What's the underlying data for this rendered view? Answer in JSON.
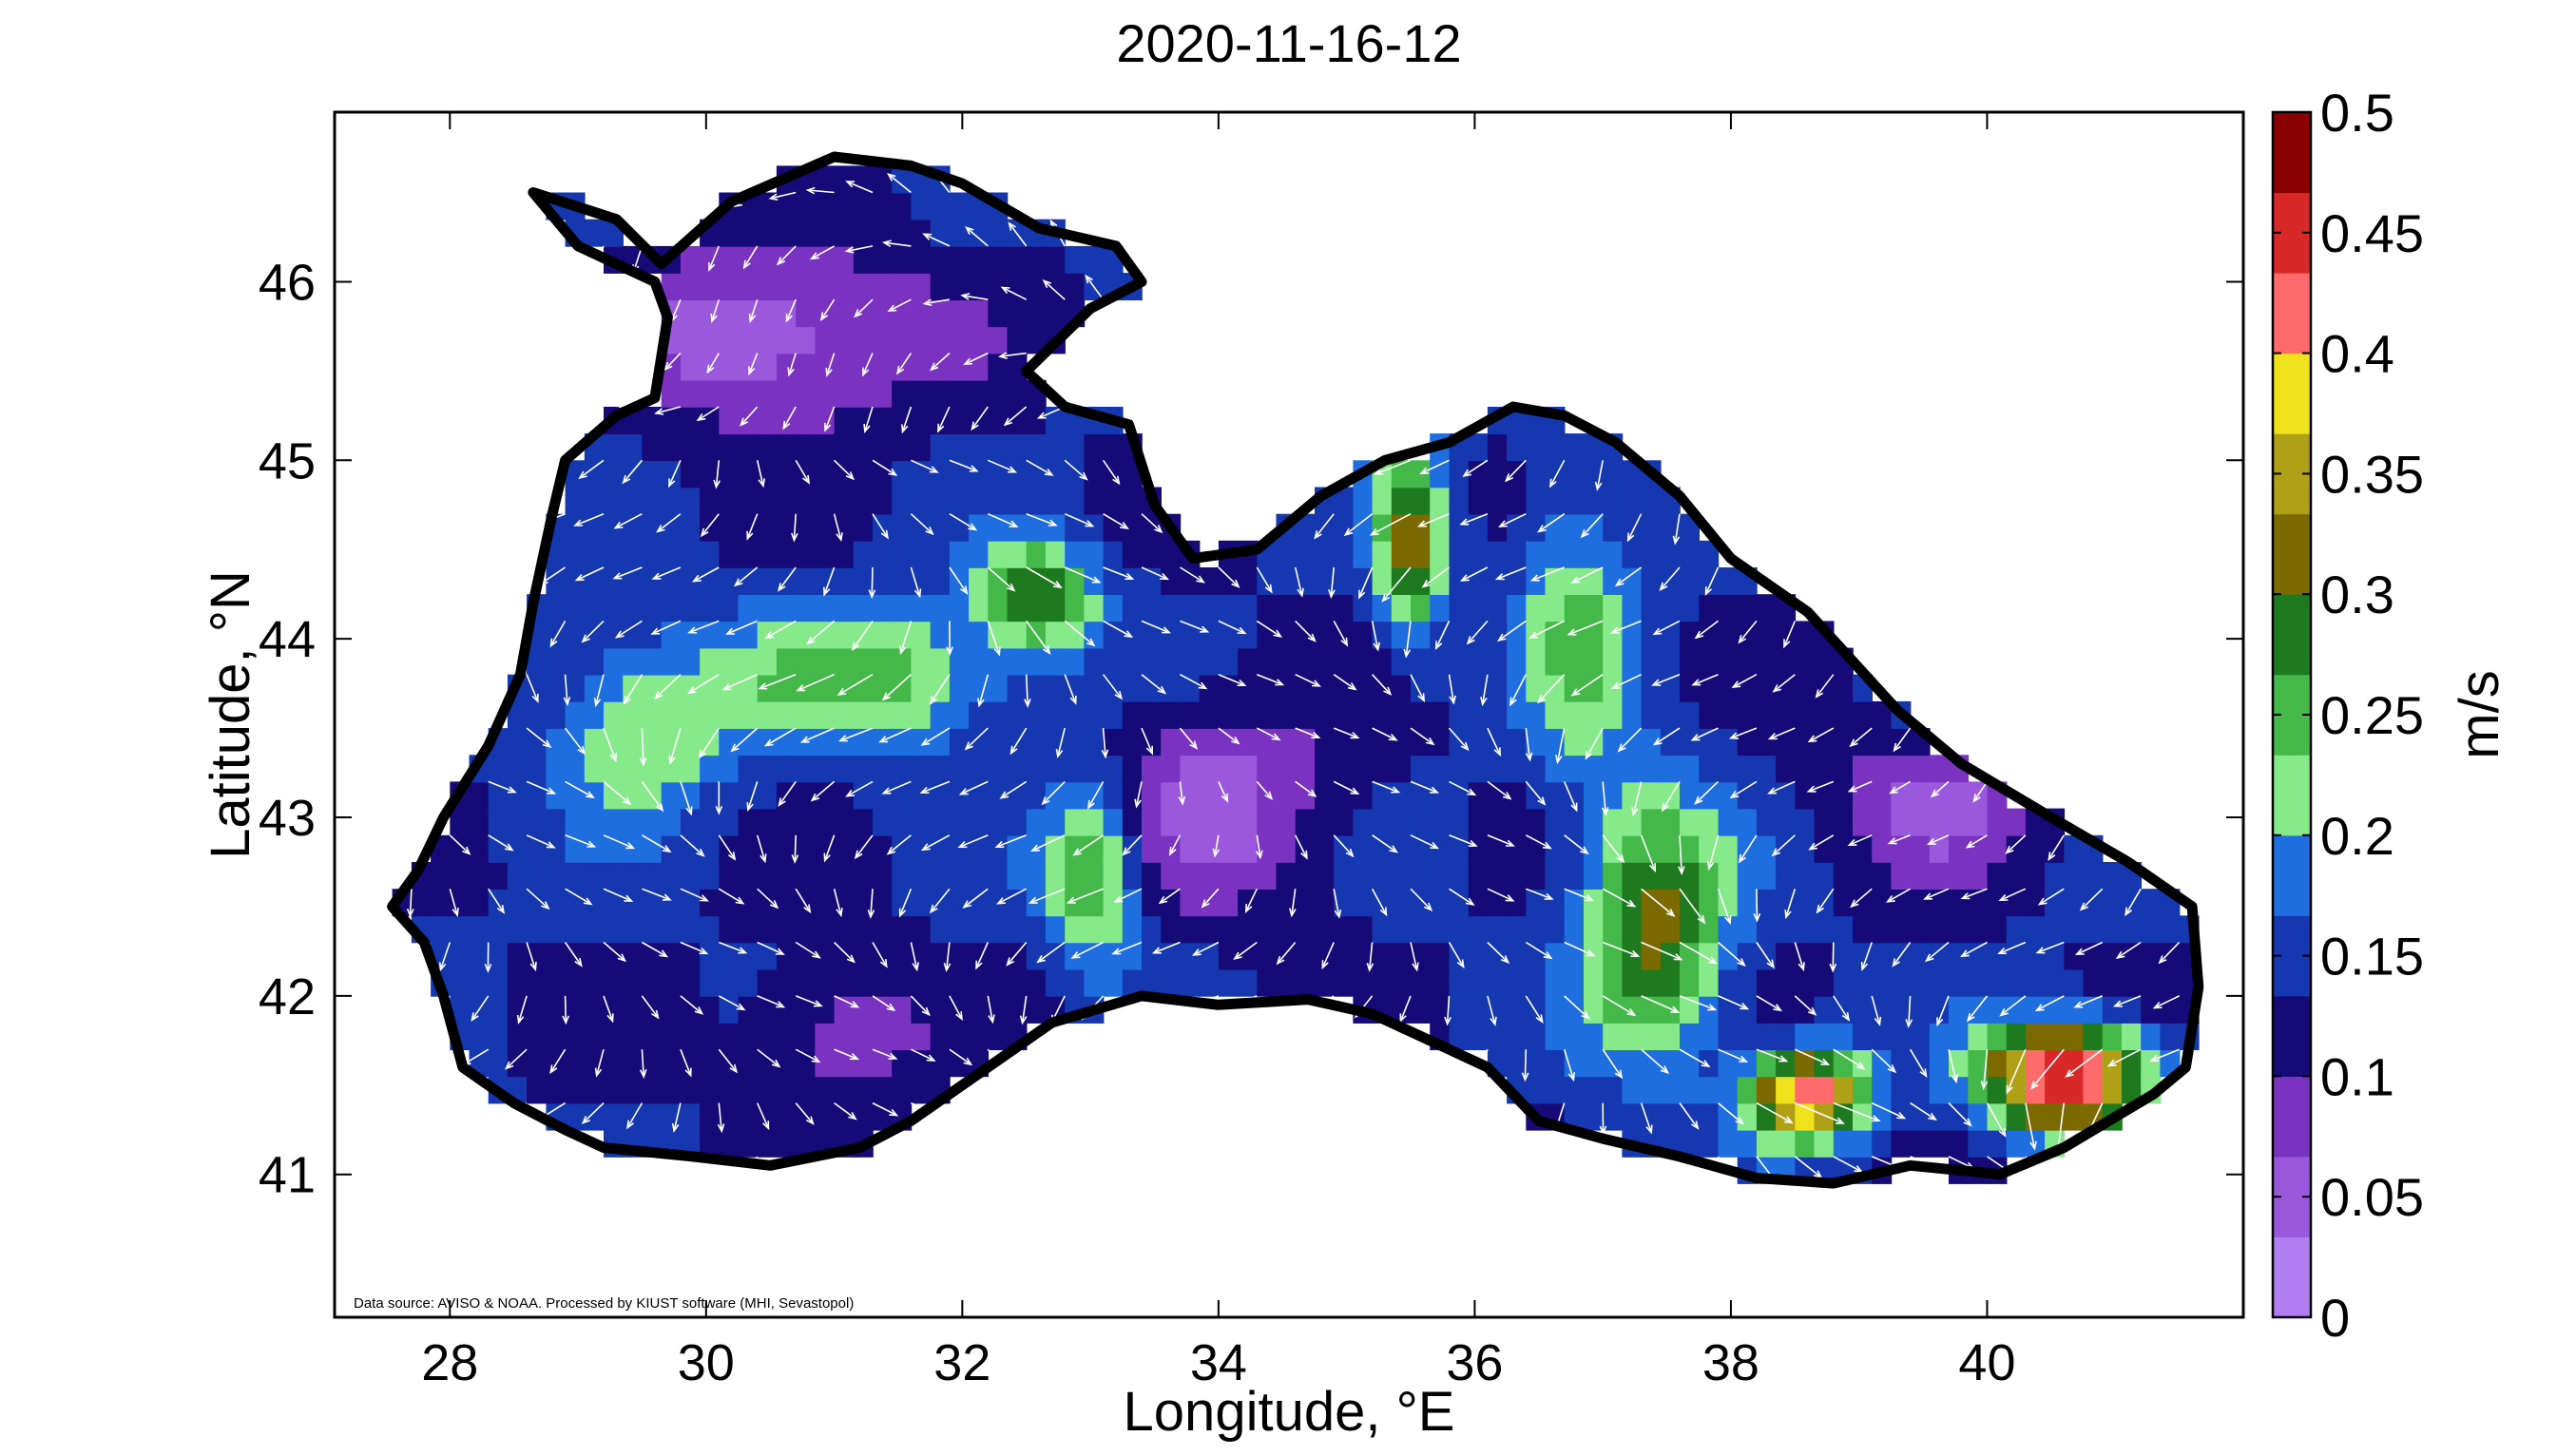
{
  "chart_data": {
    "type": "heatmap",
    "title": "2020-11-16-12",
    "xlabel": "Longitude, °E",
    "ylabel": "Latitude, °N",
    "xlim": [
      27.1,
      42.0
    ],
    "ylim": [
      40.2,
      46.95
    ],
    "x_ticks": [
      28,
      30,
      32,
      34,
      36,
      38,
      40
    ],
    "x_tick_labels": [
      "28",
      "30",
      "32",
      "34",
      "36",
      "38",
      "40"
    ],
    "y_ticks": [
      41,
      42,
      43,
      44,
      45,
      46
    ],
    "y_tick_labels": [
      "41",
      "42",
      "43",
      "44",
      "45",
      "46"
    ],
    "colorbar": {
      "label": "m/s",
      "range": [
        0,
        0.5
      ],
      "ticks": [
        0,
        0.05,
        0.1,
        0.15,
        0.2,
        0.25,
        0.3,
        0.35,
        0.4,
        0.45,
        0.5
      ],
      "tick_labels": [
        "0",
        "0.05",
        "0.1",
        "0.15",
        "0.2",
        "0.25",
        "0.3",
        "0.35",
        "0.4",
        "0.45",
        "0.5"
      ],
      "colors": [
        "#b07ef0",
        "#9a58dc",
        "#7a33c0",
        "#160a78",
        "#1538b0",
        "#1e6ee0",
        "#86ea8a",
        "#45b84a",
        "#1e7a1e",
        "#7a6a00",
        "#b0a018",
        "#f0e21a",
        "#ff6a6a",
        "#d82828",
        "#8b0000"
      ]
    },
    "grid": false,
    "legend": "colorbar-right",
    "credit": "Data source: AVISO & NOAA. Processed by KIUST software (MHI, Sevastopol)",
    "coastline": [
      [
        28.65,
        46.5
      ],
      [
        29.3,
        46.35
      ],
      [
        29.65,
        46.1
      ],
      [
        30.2,
        46.45
      ],
      [
        31.0,
        46.7
      ],
      [
        31.6,
        46.65
      ],
      [
        32.0,
        46.55
      ],
      [
        32.6,
        46.3
      ],
      [
        33.2,
        46.2
      ],
      [
        33.4,
        46.0
      ],
      [
        33.0,
        45.85
      ],
      [
        32.5,
        45.5
      ],
      [
        32.8,
        45.3
      ],
      [
        33.3,
        45.2
      ],
      [
        33.5,
        44.75
      ],
      [
        33.8,
        44.45
      ],
      [
        34.3,
        44.5
      ],
      [
        34.8,
        44.8
      ],
      [
        35.3,
        45.0
      ],
      [
        35.8,
        45.1
      ],
      [
        36.3,
        45.3
      ],
      [
        36.7,
        45.25
      ],
      [
        37.1,
        45.1
      ],
      [
        37.6,
        44.8
      ],
      [
        38.0,
        44.45
      ],
      [
        38.6,
        44.15
      ],
      [
        39.3,
        43.6
      ],
      [
        39.8,
        43.3
      ],
      [
        40.5,
        43.0
      ],
      [
        41.1,
        42.75
      ],
      [
        41.6,
        42.5
      ],
      [
        41.65,
        42.05
      ],
      [
        41.55,
        41.6
      ],
      [
        41.3,
        41.45
      ],
      [
        40.6,
        41.15
      ],
      [
        40.1,
        41.0
      ],
      [
        39.4,
        41.05
      ],
      [
        38.8,
        40.95
      ],
      [
        38.2,
        40.98
      ],
      [
        37.6,
        41.1
      ],
      [
        37.0,
        41.2
      ],
      [
        36.5,
        41.3
      ],
      [
        36.1,
        41.6
      ],
      [
        35.8,
        41.7
      ],
      [
        35.2,
        41.9
      ],
      [
        34.7,
        41.98
      ],
      [
        34.0,
        41.95
      ],
      [
        33.4,
        42.0
      ],
      [
        32.7,
        41.85
      ],
      [
        32.2,
        41.6
      ],
      [
        31.6,
        41.3
      ],
      [
        31.2,
        41.15
      ],
      [
        30.5,
        41.05
      ],
      [
        29.9,
        41.1
      ],
      [
        29.2,
        41.15
      ],
      [
        28.9,
        41.25
      ],
      [
        28.5,
        41.4
      ],
      [
        28.1,
        41.6
      ],
      [
        27.95,
        42.0
      ],
      [
        27.8,
        42.3
      ],
      [
        27.55,
        42.5
      ],
      [
        27.75,
        42.7
      ],
      [
        27.95,
        43.0
      ],
      [
        28.3,
        43.4
      ],
      [
        28.55,
        43.8
      ],
      [
        28.65,
        44.2
      ],
      [
        28.8,
        44.7
      ],
      [
        28.9,
        45.0
      ],
      [
        29.3,
        45.25
      ],
      [
        29.6,
        45.35
      ],
      [
        29.7,
        45.8
      ],
      [
        29.6,
        46.0
      ],
      [
        29.0,
        46.2
      ]
    ]
  }
}
